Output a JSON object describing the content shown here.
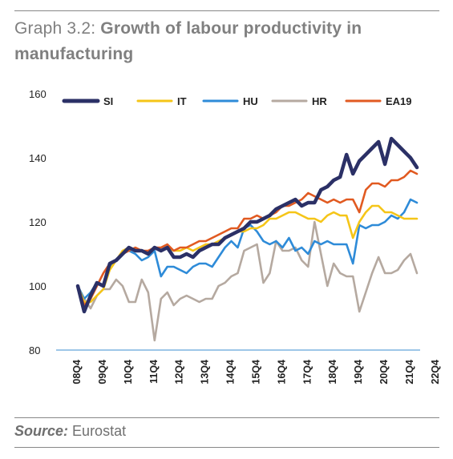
{
  "header": {
    "title_lead": "Graph 3.2:",
    "title_main": "Growth of labour productivity in manufacturing"
  },
  "footer": {
    "source_label": "Source:",
    "source_value": "Eurostat"
  },
  "chart_data": {
    "type": "line",
    "ylim": [
      80,
      160
    ],
    "yticks": [
      80,
      100,
      120,
      140,
      160
    ],
    "x_tick_labels": [
      "08Q4",
      "09Q4",
      "10Q4",
      "11Q4",
      "12Q4",
      "13Q4",
      "14Q4",
      "15Q4",
      "16Q4",
      "17Q4",
      "18Q4",
      "19Q4",
      "20Q4",
      "21Q4",
      "22Q4"
    ],
    "legend_position": "top",
    "grid": false,
    "series": [
      {
        "name": "SI",
        "color": "#2b3066",
        "values": [
          100,
          92,
          97,
          101,
          100,
          107,
          108,
          110,
          112,
          111,
          111,
          110,
          112,
          111,
          112,
          109,
          109,
          110,
          109,
          111,
          112,
          113,
          113,
          115,
          116,
          117,
          118,
          120,
          120,
          121,
          122,
          124,
          125,
          126,
          127,
          125,
          126,
          126,
          130,
          131,
          133,
          134,
          141,
          135,
          139,
          141,
          143,
          145,
          138,
          146,
          144,
          142,
          140,
          137
        ]
      },
      {
        "name": "IT",
        "color": "#f5c518",
        "values": [
          100,
          95,
          95,
          97,
          99,
          105,
          108,
          111,
          112,
          111,
          111,
          110,
          112,
          111,
          112,
          111,
          111,
          112,
          111,
          112,
          113,
          113,
          114,
          115,
          116,
          117,
          117,
          118,
          118,
          119,
          121,
          121,
          122,
          123,
          123,
          122,
          121,
          121,
          120,
          122,
          123,
          122,
          122,
          115,
          120,
          123,
          125,
          125,
          123,
          123,
          122,
          121,
          121,
          121
        ]
      },
      {
        "name": "HU",
        "color": "#2e8bd8",
        "values": [
          100,
          96,
          98,
          101,
          100,
          106,
          108,
          110,
          111,
          110,
          108,
          109,
          111,
          103,
          106,
          106,
          105,
          104,
          106,
          107,
          107,
          106,
          109,
          112,
          114,
          112,
          118,
          119,
          117,
          114,
          113,
          114,
          112,
          115,
          111,
          112,
          110,
          114,
          113,
          114,
          113,
          113,
          113,
          107,
          119,
          118,
          119,
          119,
          120,
          122,
          121,
          123,
          127,
          126
        ]
      },
      {
        "name": "HR",
        "color": "#b5a9a0",
        "values": [
          100,
          96,
          93,
          97,
          99,
          99,
          102,
          100,
          95,
          95,
          102,
          98,
          83,
          96,
          98,
          94,
          96,
          97,
          96,
          95,
          96,
          96,
          100,
          101,
          103,
          104,
          111,
          112,
          113,
          101,
          104,
          114,
          111,
          111,
          112,
          108,
          106,
          120,
          110,
          100,
          107,
          104,
          103,
          103,
          92,
          98,
          104,
          109,
          104,
          104,
          105,
          108,
          110,
          104
        ]
      },
      {
        "name": "EA19",
        "color": "#e15a21",
        "values": [
          100,
          94,
          96,
          100,
          104,
          107,
          108,
          110,
          111,
          112,
          111,
          111,
          112,
          112,
          113,
          111,
          112,
          112,
          113,
          114,
          114,
          115,
          116,
          117,
          118,
          118,
          121,
          121,
          122,
          121,
          122,
          123,
          125,
          125,
          126,
          127,
          129,
          128,
          127,
          126,
          127,
          126,
          127,
          127,
          123,
          130,
          132,
          132,
          131,
          133,
          133,
          134,
          136,
          135
        ]
      }
    ]
  }
}
